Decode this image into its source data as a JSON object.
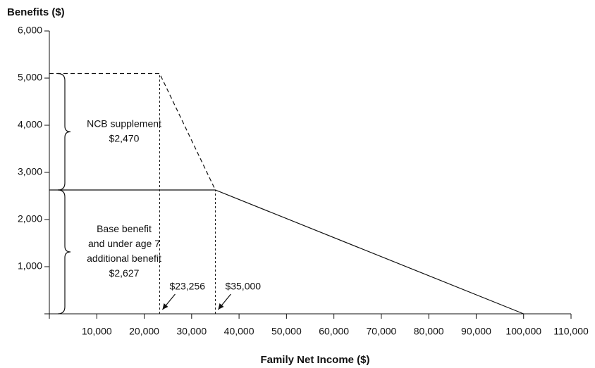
{
  "chart_data": {
    "type": "line",
    "title": "Benefits ($)",
    "x_label": "Family Net Income ($)",
    "xlim": [
      0,
      110000
    ],
    "ylim": [
      0,
      6000
    ],
    "xticks": [
      {
        "value": 10000,
        "label": "10,000"
      },
      {
        "value": 20000,
        "label": "20,000"
      },
      {
        "value": 30000,
        "label": "30,000"
      },
      {
        "value": 40000,
        "label": "40,000"
      },
      {
        "value": 50000,
        "label": "50,000"
      },
      {
        "value": 60000,
        "label": "60,000"
      },
      {
        "value": 70000,
        "label": "70,000"
      },
      {
        "value": 80000,
        "label": "80,000"
      },
      {
        "value": 90000,
        "label": "90,000"
      },
      {
        "value": 100000,
        "label": "100,000"
      },
      {
        "value": 110000,
        "label": "110,000"
      }
    ],
    "yticks": [
      {
        "value": 1000,
        "label": "1,000"
      },
      {
        "value": 2000,
        "label": "2,000"
      },
      {
        "value": 3000,
        "label": "3,000"
      },
      {
        "value": 4000,
        "label": "4,000"
      },
      {
        "value": 5000,
        "label": "5,000"
      },
      {
        "value": 6000,
        "label": "6,000"
      }
    ],
    "series": [
      {
        "color": "#111111",
        "dashed": false,
        "x": [
          0,
          35000,
          100000
        ],
        "values": [
          2627,
          2627,
          0
        ]
      },
      {
        "color": "#111111",
        "dashed": true,
        "x": [
          0,
          23256,
          35000
        ],
        "values": [
          5097,
          5097,
          2627
        ]
      }
    ],
    "vlines": [
      {
        "value": 23256,
        "top": 5097,
        "label": "$23,256"
      },
      {
        "value": 35000,
        "top": 2627,
        "label": "$35,000"
      }
    ],
    "annotations": [
      {
        "from": 2627,
        "to": 5097,
        "lines": [
          "NCB supplement",
          "$2,470"
        ]
      },
      {
        "from": 0,
        "to": 2627,
        "lines": [
          "Base benefit",
          "and under age 7",
          "additional benefit",
          "$2,627"
        ]
      }
    ]
  }
}
